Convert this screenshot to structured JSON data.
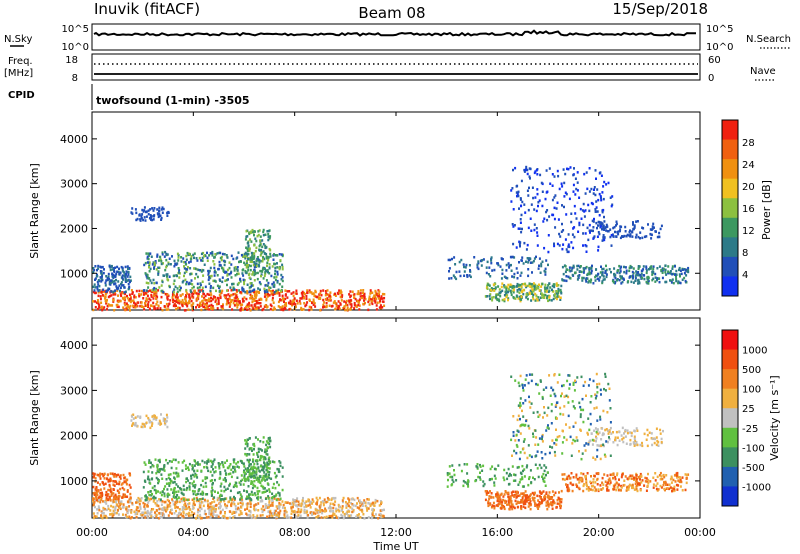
{
  "header": {
    "radar": "Inuvik (fitACF)",
    "beam": "Beam 08",
    "date": "15/Sep/2018"
  },
  "top_panels": {
    "nsky_label": "N.Sky",
    "nsearch_label": "N.Search",
    "left_ticks": [
      "10^5",
      "10^0"
    ],
    "right_ticks": [
      "10^5",
      "10^0"
    ],
    "freq_label": "Freq.",
    "freq_unit": "[MHz]",
    "freq_ticks": [
      "18",
      "8"
    ],
    "nave_label": "Nave",
    "nave_ticks": [
      "60",
      "0"
    ],
    "cpid_label": "CPID",
    "cpid_text": "twofsound (1-min) -3505"
  },
  "chart_data": [
    {
      "type": "heatmap",
      "name": "power",
      "ylabel": "Slant Range [km]",
      "ylim": [
        180,
        4600
      ],
      "yticks": [
        1000,
        2000,
        3000,
        4000
      ],
      "xticks": [
        "00:00",
        "04:00",
        "08:00",
        "12:00",
        "16:00",
        "20:00",
        "00:00"
      ],
      "colorbar": {
        "label": "Power [dB]",
        "ticks": [
          "28",
          "24",
          "20",
          "16",
          "12",
          "8",
          "4"
        ],
        "colors": [
          "#1030f0",
          "#204fb8",
          "#2c7a88",
          "#3c9860",
          "#8cc040",
          "#f0c020",
          "#f09010",
          "#f06010",
          "#f02010"
        ]
      }
    },
    {
      "type": "heatmap",
      "name": "velocity",
      "ylabel": "Slant Range [km]",
      "xlabel": "Time UT",
      "ylim": [
        180,
        4600
      ],
      "yticks": [
        1000,
        2000,
        3000,
        4000
      ],
      "xticks": [
        "00:00",
        "04:00",
        "08:00",
        "12:00",
        "16:00",
        "20:00",
        "00:00"
      ],
      "colorbar": {
        "label": "Velocity [m s⁻¹]",
        "ticks": [
          "1000",
          "500",
          "100",
          "25",
          "-25",
          "-100",
          "-500",
          "-1000"
        ],
        "colors": [
          "#1030d0",
          "#2060b0",
          "#3c9060",
          "#60c040",
          "#c0c0c0",
          "#f0b040",
          "#f08020",
          "#f05010",
          "#f01010"
        ]
      }
    }
  ]
}
